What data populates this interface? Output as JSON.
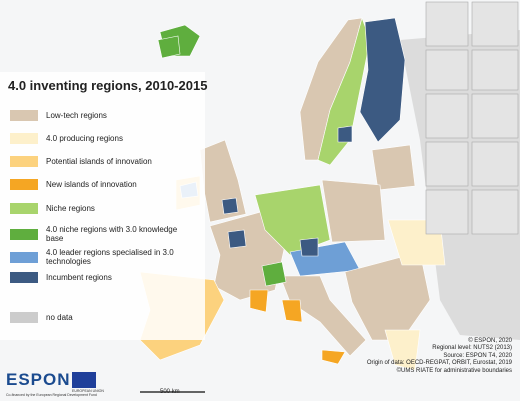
{
  "title": "4.0 inventing regions, 2010-2015",
  "legend": [
    {
      "label": "Low-tech regions",
      "color": "#d9c7b1"
    },
    {
      "label": "4.0 producing regions",
      "color": "#fdf0cb"
    },
    {
      "label": "Potential islands of innovation",
      "color": "#fcd27e"
    },
    {
      "label": "New islands of innovation",
      "color": "#f5a623"
    },
    {
      "label": "Niche regions",
      "color": "#a8d46c"
    },
    {
      "label": "4.0 niche regions with 3.0 knowledge base",
      "color": "#5fae3e"
    },
    {
      "label": "4.0 leader regions specialised in 3.0 technologies",
      "color": "#6e9fd6"
    },
    {
      "label": "Incumbent regions",
      "color": "#3c5a82"
    },
    {
      "label": "no data",
      "color": "#cccccc"
    }
  ],
  "scale_bar": "500 km",
  "logo": {
    "name": "ESPON",
    "eu": "EUROPEAN UNION",
    "funding": "Co-financed by the European Regional Development Fund"
  },
  "credits": [
    "© ESPON, 2020",
    "Regional level: NUTS2 (2013)",
    "Source: ESPON T4, 2020",
    "Origin of data: OECD-REGPAT, ORBIT, Eurostat, 2019",
    "©UMS RIATE for administrative boundaries"
  ]
}
